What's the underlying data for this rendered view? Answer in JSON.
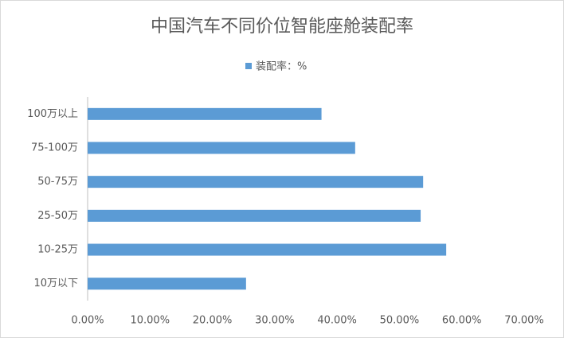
{
  "chart_data": {
    "type": "bar",
    "orientation": "horizontal",
    "title": "中国汽车不同价位智能座舱装配率",
    "categories": [
      "10万以下",
      "10-25万",
      "25-50万",
      "50-75万",
      "75-100万",
      "100万以上"
    ],
    "series": [
      {
        "name": "装配率：%",
        "color": "#5b9bd5",
        "values": [
          25.4,
          57.5,
          53.4,
          53.8,
          42.9,
          37.5
        ]
      }
    ],
    "xlim": [
      0,
      70
    ],
    "xticks": [
      {
        "value": 0,
        "label": "0.00%"
      },
      {
        "value": 10,
        "label": "10.00%"
      },
      {
        "value": 20,
        "label": "20.00%"
      },
      {
        "value": 30,
        "label": "30.00%"
      },
      {
        "value": 40,
        "label": "40.00%"
      },
      {
        "value": 50,
        "label": "50.00%"
      },
      {
        "value": 60,
        "label": "60.00%"
      },
      {
        "value": 70,
        "label": "70.00%"
      }
    ],
    "legend": "top"
  }
}
